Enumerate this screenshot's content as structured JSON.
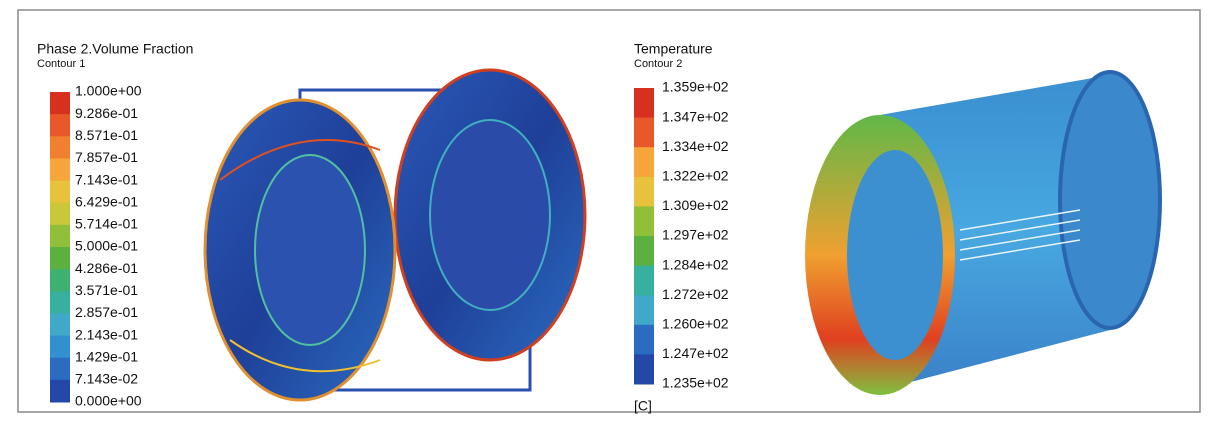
{
  "panels": [
    {
      "title": "Phase 2.Volume Fraction",
      "subtitle": "Contour 1",
      "levels": [
        "1.000e+00",
        "9.286e-01",
        "8.571e-01",
        "7.857e-01",
        "7.143e-01",
        "6.429e-01",
        "5.714e-01",
        "5.000e-01",
        "4.286e-01",
        "3.571e-01",
        "2.857e-01",
        "2.143e-01",
        "1.429e-01",
        "7.143e-02",
        "0.000e+00"
      ]
    },
    {
      "title": "Temperature",
      "subtitle": "Contour 2",
      "levels": [
        "1.359e+02",
        "1.347e+02",
        "1.334e+02",
        "1.322e+02",
        "1.309e+02",
        "1.297e+02",
        "1.284e+02",
        "1.272e+02",
        "1.260e+02",
        "1.247e+02",
        "1.235e+02"
      ],
      "unit": "[C]"
    }
  ]
}
